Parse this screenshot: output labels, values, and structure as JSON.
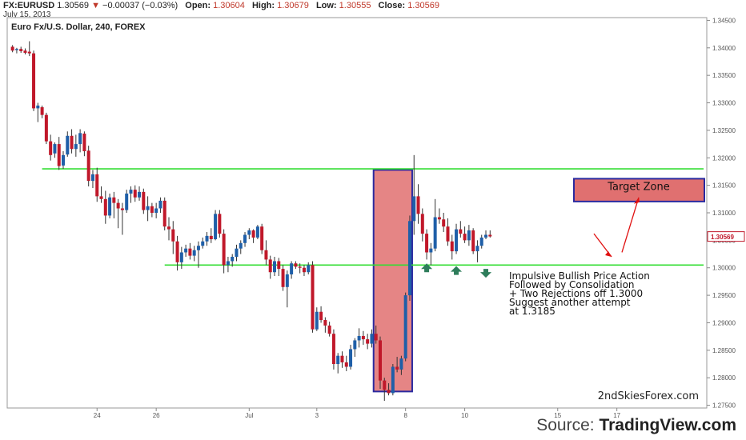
{
  "header": {
    "symbol": "FX:EURUSD",
    "last": "1.30569",
    "change_arrow": "▼",
    "change": "−0.00037 (−0.03%)",
    "open_label": "Open:",
    "open": "1.30604",
    "high_label": "High:",
    "high": "1.30679",
    "low_label": "Low:",
    "low": "1.30555",
    "close_label": "Close:",
    "close": "1.30569",
    "date": "July 15, 2013"
  },
  "chart_data": {
    "type": "candlestick",
    "title": "Euro Fx/U.S. Dollar, 240, FOREX",
    "ylim": [
      1.2745,
      1.3455
    ],
    "y_ticks": [
      "1.34500",
      "1.34000",
      "1.33500",
      "1.33000",
      "1.32500",
      "1.32000",
      "1.31500",
      "1.31000",
      "1.30500",
      "1.30000",
      "1.29500",
      "1.29000",
      "1.28500",
      "1.28000",
      "1.27500"
    ],
    "x_tick_labels": [
      "24",
      "26",
      "Jul",
      "3",
      "8",
      "10",
      "15",
      "17"
    ],
    "last_price_label": "1.30569",
    "candles": [
      [
        1.3402,
        1.3405,
        1.3392,
        1.3395
      ],
      [
        1.3396,
        1.34,
        1.339,
        1.3398
      ],
      [
        1.3398,
        1.3402,
        1.3391,
        1.3394
      ],
      [
        1.3395,
        1.3399,
        1.3388,
        1.3391
      ],
      [
        1.3393,
        1.3412,
        1.3385,
        1.339
      ],
      [
        1.339,
        1.3395,
        1.3285,
        1.329
      ],
      [
        1.329,
        1.33,
        1.3265,
        1.3295
      ],
      [
        1.3292,
        1.3295,
        1.3272,
        1.3278
      ],
      [
        1.3278,
        1.3282,
        1.3225,
        1.323
      ],
      [
        1.323,
        1.3242,
        1.3195,
        1.3205
      ],
      [
        1.3208,
        1.3228,
        1.32,
        1.3225
      ],
      [
        1.3225,
        1.3238,
        1.3178,
        1.3185
      ],
      [
        1.3186,
        1.3212,
        1.318,
        1.3205
      ],
      [
        1.3206,
        1.3248,
        1.3202,
        1.324
      ],
      [
        1.324,
        1.3252,
        1.3208,
        1.3216
      ],
      [
        1.3216,
        1.3242,
        1.3202,
        1.3225
      ],
      [
        1.3225,
        1.3252,
        1.321,
        1.3245
      ],
      [
        1.3244,
        1.3248,
        1.3203,
        1.3212
      ],
      [
        1.3213,
        1.3222,
        1.3148,
        1.3158
      ],
      [
        1.3158,
        1.3178,
        1.3145,
        1.317
      ],
      [
        1.317,
        1.3182,
        1.312,
        1.313
      ],
      [
        1.313,
        1.3148,
        1.3118,
        1.3125
      ],
      [
        1.3125,
        1.314,
        1.308,
        1.3095
      ],
      [
        1.3095,
        1.3135,
        1.309,
        1.3128
      ],
      [
        1.3128,
        1.3138,
        1.309,
        1.3118
      ],
      [
        1.3118,
        1.3125,
        1.3072,
        1.3108
      ],
      [
        1.3108,
        1.3118,
        1.306,
        1.3105
      ],
      [
        1.3105,
        1.3142,
        1.31,
        1.3135
      ],
      [
        1.3135,
        1.3148,
        1.3118,
        1.3142
      ],
      [
        1.3142,
        1.315,
        1.312,
        1.3128
      ],
      [
        1.3128,
        1.3148,
        1.3122,
        1.3138
      ],
      [
        1.3138,
        1.3144,
        1.3098,
        1.3105
      ],
      [
        1.3105,
        1.313,
        1.3085,
        1.3112
      ],
      [
        1.3112,
        1.3118,
        1.3092,
        1.31
      ],
      [
        1.31,
        1.3118,
        1.309,
        1.3108
      ],
      [
        1.3108,
        1.3128,
        1.31,
        1.3122
      ],
      [
        1.3122,
        1.3128,
        1.3068,
        1.3075
      ],
      [
        1.3075,
        1.3092,
        1.305,
        1.307
      ],
      [
        1.307,
        1.3085,
        1.3025,
        1.3048
      ],
      [
        1.3048,
        1.3058,
        1.2995,
        1.301
      ],
      [
        1.301,
        1.3038,
        1.2998,
        1.3028
      ],
      [
        1.3028,
        1.3042,
        1.302,
        1.3035
      ],
      [
        1.3035,
        1.3045,
        1.3015,
        1.3022
      ],
      [
        1.3022,
        1.304,
        1.3012,
        1.3032
      ],
      [
        1.3032,
        1.3048,
        1.3,
        1.304
      ],
      [
        1.304,
        1.3055,
        1.3035,
        1.3048
      ],
      [
        1.3048,
        1.3065,
        1.304,
        1.3058
      ],
      [
        1.3058,
        1.3072,
        1.3045,
        1.3052
      ],
      [
        1.3052,
        1.3105,
        1.305,
        1.3098
      ],
      [
        1.3098,
        1.3105,
        1.3055,
        1.3062
      ],
      [
        1.3062,
        1.307,
        1.299,
        1.3005
      ],
      [
        1.3005,
        1.302,
        1.2992,
        1.3012
      ],
      [
        1.3012,
        1.3025,
        1.3002,
        1.302
      ],
      [
        1.302,
        1.3042,
        1.3012,
        1.3035
      ],
      [
        1.3035,
        1.305,
        1.3025,
        1.3045
      ],
      [
        1.3045,
        1.3065,
        1.3038,
        1.306
      ],
      [
        1.306,
        1.3072,
        1.3052,
        1.3068
      ],
      [
        1.3068,
        1.307,
        1.3045,
        1.3055
      ],
      [
        1.3055,
        1.3078,
        1.3052,
        1.3075
      ],
      [
        1.3075,
        1.308,
        1.3025,
        1.3032
      ],
      [
        1.3032,
        1.305,
        1.3005,
        1.3015
      ],
      [
        1.3015,
        1.3022,
        1.298,
        1.2992
      ],
      [
        1.2992,
        1.302,
        1.2985,
        1.3012
      ],
      [
        1.3012,
        1.3018,
        1.2985,
        1.2998
      ],
      [
        1.2998,
        1.3005,
        1.2958,
        1.2965
      ],
      [
        1.2965,
        1.2995,
        1.2928,
        1.2988
      ],
      [
        1.2988,
        1.3012,
        1.298,
        1.3008
      ],
      [
        1.3008,
        1.3012,
        1.2998,
        1.3002
      ],
      [
        1.3002,
        1.3008,
        1.299,
        1.3
      ],
      [
        1.3,
        1.3005,
        1.2985,
        1.2992
      ],
      [
        1.2992,
        1.301,
        1.2988,
        1.3005
      ],
      [
        1.3005,
        1.3012,
        1.2882,
        1.2888
      ],
      [
        1.2888,
        1.2928,
        1.2885,
        1.292
      ],
      [
        1.292,
        1.293,
        1.29,
        1.2905
      ],
      [
        1.2905,
        1.291,
        1.2882,
        1.2895
      ],
      [
        1.2895,
        1.2902,
        1.2875,
        1.288
      ],
      [
        1.288,
        1.2888,
        1.2815,
        1.2825
      ],
      [
        1.2825,
        1.2845,
        1.2808,
        1.284
      ],
      [
        1.284,
        1.2848,
        1.2818,
        1.2828
      ],
      [
        1.2828,
        1.284,
        1.2812,
        1.282
      ],
      [
        1.282,
        1.286,
        1.2815,
        1.2852
      ],
      [
        1.2852,
        1.2872,
        1.2838,
        1.2868
      ],
      [
        1.2868,
        1.289,
        1.2855,
        1.2876
      ],
      [
        1.2876,
        1.2885,
        1.286,
        1.287
      ],
      [
        1.287,
        1.288,
        1.2852,
        1.2862
      ],
      [
        1.2862,
        1.2888,
        1.2855,
        1.288
      ],
      [
        1.288,
        1.2895,
        1.2862,
        1.2868
      ],
      [
        1.2868,
        1.2875,
        1.278,
        1.2795
      ],
      [
        1.2795,
        1.28,
        1.2758,
        1.2778
      ],
      [
        1.2778,
        1.279,
        1.2768,
        1.2772
      ],
      [
        1.2772,
        1.2825,
        1.2768,
        1.282
      ],
      [
        1.282,
        1.2838,
        1.281,
        1.2815
      ],
      [
        1.2815,
        1.284,
        1.2805,
        1.2835
      ],
      [
        1.2835,
        1.2955,
        1.283,
        1.295
      ],
      [
        1.295,
        1.3095,
        1.294,
        1.3085
      ],
      [
        1.3085,
        1.3205,
        1.306,
        1.313
      ],
      [
        1.313,
        1.3152,
        1.308,
        1.3098
      ],
      [
        1.3098,
        1.3108,
        1.3048,
        1.3062
      ],
      [
        1.3062,
        1.307,
        1.3015,
        1.3028
      ],
      [
        1.3028,
        1.3045,
        1.3005,
        1.3035
      ],
      [
        1.3035,
        1.3125,
        1.303,
        1.3092
      ],
      [
        1.3092,
        1.3108,
        1.308,
        1.3088
      ],
      [
        1.3088,
        1.31,
        1.3065,
        1.3075
      ],
      [
        1.3075,
        1.309,
        1.304,
        1.3048
      ],
      [
        1.3048,
        1.306,
        1.3015,
        1.303
      ],
      [
        1.303,
        1.308,
        1.3025,
        1.307
      ],
      [
        1.307,
        1.3085,
        1.3055,
        1.3062
      ],
      [
        1.3062,
        1.3075,
        1.3045,
        1.305
      ],
      [
        1.305,
        1.3078,
        1.304,
        1.3068
      ],
      [
        1.3068,
        1.3072,
        1.3025,
        1.303
      ],
      [
        1.303,
        1.305,
        1.301,
        1.304
      ],
      [
        1.304,
        1.306,
        1.3035,
        1.3055
      ],
      [
        1.3055,
        1.3068,
        1.3052,
        1.306
      ],
      [
        1.306,
        1.3068,
        1.3055,
        1.3057
      ]
    ],
    "levels": [
      1.318,
      1.3005
    ],
    "annotations": {
      "target_zone": "Target Zone",
      "note": [
        "Impulsive Bullish Price Action",
        "Followed by Consolidation",
        "+ Two Rejections off 1.3000",
        "Suggest another attempt",
        "at 1.3185"
      ],
      "watermark": "2ndSkiesForex.com"
    },
    "colors": {
      "up": "#1f5fa8",
      "down": "#c0182a",
      "level_line": "#33dd33",
      "highlight_fill": "#e07070",
      "highlight_border": "#2a2aa0",
      "arrow": "#e01010",
      "marker": "#2e7d5b"
    }
  },
  "footer": {
    "source_prefix": "Source: ",
    "source_name": "TradingView.com"
  }
}
